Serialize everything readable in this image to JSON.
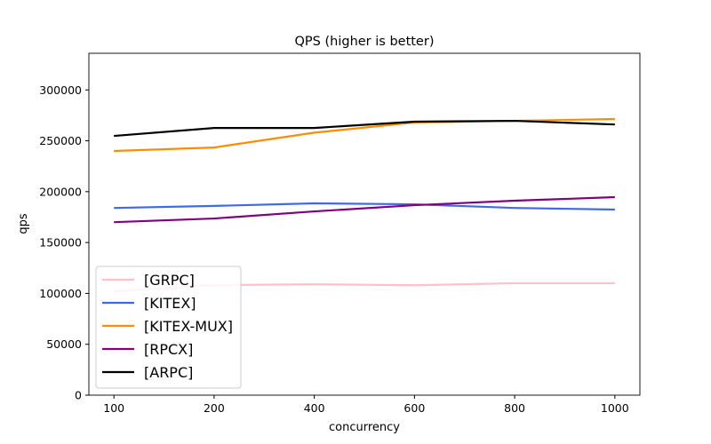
{
  "chart_data": {
    "type": "line",
    "title": "QPS (higher is better)",
    "xlabel": "concurrency",
    "ylabel": "qps",
    "categories": [
      "100",
      "200",
      "400",
      "600",
      "800",
      "1000"
    ],
    "ylim": [
      0,
      336000
    ],
    "yticks": [
      0,
      50000,
      100000,
      150000,
      200000,
      250000,
      300000
    ],
    "ytick_labels": [
      "0",
      "50000",
      "100000",
      "150000",
      "200000",
      "250000",
      "300000"
    ],
    "grid": false,
    "legend_placement": "lower-left",
    "series": [
      {
        "name": "[GRPC]",
        "color": "#ffc0cb",
        "values": [
          102000,
          108200,
          109000,
          108000,
          110000,
          110000
        ]
      },
      {
        "name": "[KITEX]",
        "color": "#4169e1",
        "values": [
          184000,
          186000,
          188500,
          187600,
          184000,
          182400
        ]
      },
      {
        "name": "[KITEX-MUX]",
        "color": "#ff8c00",
        "values": [
          240000,
          243400,
          258000,
          268000,
          269600,
          271400
        ]
      },
      {
        "name": "[RPCX]",
        "color": "#800080",
        "values": [
          170000,
          173600,
          180600,
          186700,
          191100,
          194600
        ]
      },
      {
        "name": "[ARPC]",
        "color": "#000000",
        "values": [
          254800,
          262600,
          262600,
          268800,
          269600,
          266000
        ]
      }
    ]
  }
}
